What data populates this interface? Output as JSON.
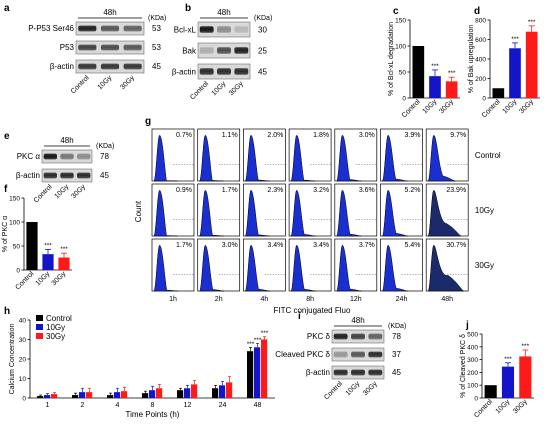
{
  "panels": {
    "a": {
      "letter": "a",
      "time": "48h",
      "kda": "(KDa)",
      "rows": [
        {
          "label": "P-P53 Ser46",
          "size": "53",
          "intensity": [
            0.85,
            0.6,
            0.55
          ]
        },
        {
          "label": "P53",
          "size": "53",
          "intensity": [
            0.7,
            0.65,
            0.6
          ]
        },
        {
          "label": "β-actin",
          "size": "45",
          "intensity": [
            0.75,
            0.75,
            0.75
          ]
        }
      ],
      "lanes": [
        "Control",
        "10Gy",
        "30Gy"
      ]
    },
    "b": {
      "letter": "b",
      "time": "48h",
      "kda": "(KDa)",
      "rows": [
        {
          "label": "Bcl-xL",
          "size": "30",
          "intensity": [
            0.9,
            0.35,
            0.15
          ]
        },
        {
          "label": "Bak",
          "size": "25",
          "intensity": [
            0.2,
            0.65,
            0.85
          ]
        },
        {
          "label": "β-actin",
          "size": "45",
          "intensity": [
            0.8,
            0.8,
            0.8
          ]
        }
      ],
      "lanes": [
        "Control",
        "10Gy",
        "30Gy"
      ]
    },
    "e": {
      "letter": "e",
      "time": "48h",
      "kda": "(KDa)",
      "rows": [
        {
          "label": "PKC α",
          "size": "78",
          "intensity": [
            0.9,
            0.45,
            0.35
          ]
        },
        {
          "label": "β-actin",
          "size": "45",
          "intensity": [
            0.8,
            0.8,
            0.8
          ]
        }
      ],
      "lanes": [
        "Control",
        "10Gy",
        "30Gy"
      ]
    },
    "i": {
      "letter": "i",
      "time": "48h",
      "kda": "(KDa)",
      "rows": [
        {
          "label": "PKC δ",
          "size": "78",
          "intensity": [
            0.85,
            0.7,
            0.55
          ]
        },
        {
          "label": "Cleaved PKC δ",
          "size": "37",
          "intensity": [
            0.3,
            0.6,
            0.8
          ]
        },
        {
          "label": "β-actin",
          "size": "45",
          "intensity": [
            0.8,
            0.8,
            0.8
          ]
        }
      ],
      "lanes": [
        "Control",
        "10Gy",
        "30Gy"
      ]
    },
    "g": {
      "letter": "g",
      "ylabel": "Count",
      "xlabel": "FITC conjugated Fluo",
      "columns": [
        "1h",
        "2h",
        "4h",
        "8h",
        "12h",
        "24h",
        "48h"
      ],
      "rows": [
        {
          "label": "Control",
          "percents": [
            "0.7%",
            "1.1%",
            "2.0%",
            "1.8%",
            "3.0%",
            "3.9%",
            "9.7%"
          ]
        },
        {
          "label": "10Gy",
          "percents": [
            "0.9%",
            "1.7%",
            "2.3%",
            "3.2%",
            "3.6%",
            "5.2%",
            "23.9%"
          ]
        },
        {
          "label": "30Gy",
          "percents": [
            "1.7%",
            "3.0%",
            "3.4%",
            "3.4%",
            "3.7%",
            "5.4%",
            "30.7%"
          ]
        }
      ]
    }
  },
  "chart_data": [
    {
      "id": "c",
      "letter": "c",
      "type": "bar",
      "ylabel": "% of Bcl-xL degradation",
      "categories": [
        "Control",
        "10Gy",
        "30Gy"
      ],
      "values": [
        100,
        42,
        32
      ],
      "errors": [
        0,
        12,
        8
      ],
      "ylim": [
        0,
        150
      ],
      "yticks": [
        0,
        50,
        100,
        150
      ],
      "colors": [
        "#000000",
        "#1515c8",
        "#ff1a1a"
      ],
      "significance": [
        "",
        "***",
        "***"
      ]
    },
    {
      "id": "d",
      "letter": "d",
      "type": "bar",
      "ylabel": "% of Bak upregulation",
      "categories": [
        "Control",
        "10Gy",
        "30Gy"
      ],
      "values": [
        100,
        510,
        680
      ],
      "errors": [
        0,
        55,
        60
      ],
      "ylim": [
        0,
        800
      ],
      "yticks": [
        0,
        200,
        400,
        600,
        800
      ],
      "colors": [
        "#000000",
        "#1515c8",
        "#ff1a1a"
      ],
      "significance": [
        "",
        "***",
        "***"
      ]
    },
    {
      "id": "f",
      "letter": "f",
      "type": "bar",
      "ylabel": "% of PKC α",
      "categories": [
        "Control",
        "10Gy",
        "30Gy"
      ],
      "values": [
        100,
        33,
        26
      ],
      "errors": [
        0,
        10,
        9
      ],
      "ylim": [
        0,
        150
      ],
      "yticks": [
        0,
        50,
        100,
        150
      ],
      "colors": [
        "#000000",
        "#1515c8",
        "#ff1a1a"
      ],
      "significance": [
        "",
        "***",
        "***"
      ]
    },
    {
      "id": "j",
      "letter": "j",
      "type": "bar",
      "ylabel": "% of Cleaved PKC δ",
      "categories": [
        "Control",
        "10Gy",
        "30Gy"
      ],
      "values": [
        100,
        245,
        325
      ],
      "errors": [
        0,
        30,
        50
      ],
      "ylim": [
        0,
        500
      ],
      "yticks": [
        0,
        100,
        200,
        300,
        400,
        500
      ],
      "colors": [
        "#000000",
        "#1515c8",
        "#ff1a1a"
      ],
      "significance": [
        "",
        "***",
        "***"
      ]
    },
    {
      "id": "h",
      "letter": "h",
      "type": "bar",
      "ylabel": "Calcium Concentration",
      "xlabel": "Time Points (h)",
      "categories": [
        "1",
        "2",
        "4",
        "8",
        "12",
        "24",
        "48"
      ],
      "series": [
        {
          "name": "Control",
          "color": "#000000",
          "values": [
            1,
            1.5,
            1.5,
            2.5,
            4,
            5,
            24
          ],
          "errors": [
            0.5,
            1,
            1,
            1,
            1,
            1.5,
            2
          ]
        },
        {
          "name": "10Gy",
          "color": "#1515c8",
          "values": [
            1.5,
            3,
            3,
            4,
            5,
            6.5,
            26
          ],
          "errors": [
            0.8,
            2,
            2,
            2,
            1.5,
            2,
            2
          ]
        },
        {
          "name": "30Gy",
          "color": "#ff1a1a",
          "values": [
            2,
            3,
            3.5,
            5,
            7,
            8,
            30
          ],
          "errors": [
            0.8,
            2,
            2,
            2,
            2,
            3,
            1.5
          ]
        }
      ],
      "significance": [
        "",
        "",
        "",
        "",
        "",
        "",
        "***"
      ],
      "ylim": [
        0,
        40
      ],
      "yticks": [
        0,
        10,
        20,
        30,
        40
      ]
    }
  ]
}
